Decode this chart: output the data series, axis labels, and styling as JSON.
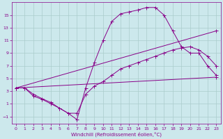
{
  "xlabel": "Windchill (Refroidissement éolien,°C)",
  "bg_color": "#cce8ec",
  "grid_color": "#aacccc",
  "line_color": "#880088",
  "xlim": [
    -0.5,
    23.5
  ],
  "ylim": [
    -2.2,
    17.0
  ],
  "xticks": [
    0,
    1,
    2,
    3,
    4,
    5,
    6,
    7,
    8,
    9,
    10,
    11,
    12,
    13,
    14,
    15,
    16,
    17,
    18,
    19,
    20,
    21,
    22,
    23
  ],
  "yticks": [
    -1,
    1,
    3,
    5,
    7,
    9,
    11,
    13,
    15
  ],
  "line1_x": [
    0,
    1,
    2,
    3,
    4,
    5,
    6,
    7,
    8,
    9,
    10,
    11,
    12,
    13,
    14,
    15,
    16,
    17,
    18,
    19,
    20,
    21,
    22,
    23
  ],
  "line1_y": [
    3.5,
    3.5,
    2.5,
    1.8,
    1.2,
    0.3,
    -0.5,
    -1.5,
    3.5,
    7.5,
    11.0,
    14.0,
    15.2,
    15.5,
    15.8,
    16.2,
    16.2,
    15.0,
    12.5,
    10.0,
    9.0,
    9.0,
    7.0,
    5.5
  ],
  "line2_x": [
    0,
    1,
    2,
    3,
    4,
    5,
    6,
    7,
    8,
    9,
    10,
    11,
    12,
    13,
    14,
    15,
    16,
    17,
    18,
    19,
    20,
    21,
    22,
    23
  ],
  "line2_y": [
    3.5,
    3.5,
    2.2,
    1.7,
    1.0,
    0.3,
    -0.5,
    -0.5,
    2.5,
    3.8,
    4.5,
    5.5,
    6.5,
    7.0,
    7.5,
    8.0,
    8.5,
    9.0,
    9.5,
    9.8,
    10.0,
    9.5,
    8.5,
    7.0
  ],
  "line3_x": [
    0,
    23
  ],
  "line3_y": [
    3.5,
    12.5
  ],
  "line4_x": [
    0,
    23
  ],
  "line4_y": [
    3.5,
    5.2
  ]
}
